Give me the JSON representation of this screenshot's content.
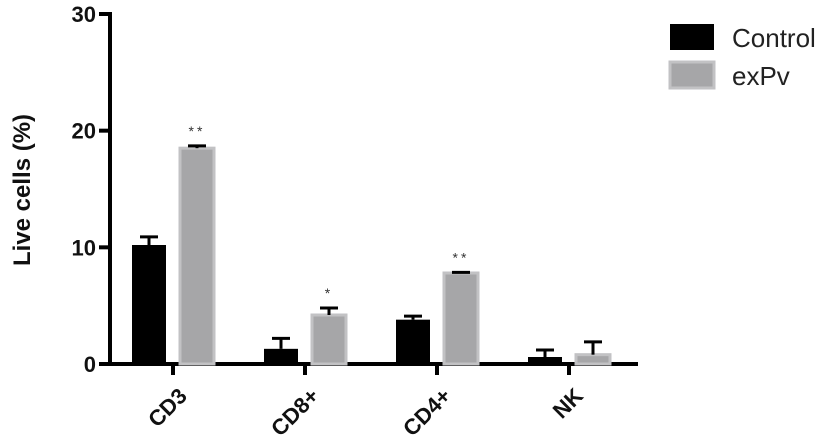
{
  "chart_data": {
    "type": "bar",
    "categories": [
      "CD3",
      "CD8+",
      "CD4+",
      "NK"
    ],
    "series": [
      {
        "name": "Control",
        "color": "#000000",
        "values": [
          10.2,
          1.3,
          3.8,
          0.6
        ],
        "errors": [
          0.7,
          0.9,
          0.3,
          0.6
        ],
        "significance": [
          "",
          "",
          "",
          ""
        ]
      },
      {
        "name": "exPv",
        "color": "#a6a6a8",
        "edge": "#c2c2c4",
        "values": [
          18.5,
          4.2,
          7.8,
          0.8
        ],
        "errors": [
          0.2,
          0.6,
          0.05,
          1.1
        ],
        "significance": [
          "**",
          "*",
          "**",
          ""
        ]
      }
    ],
    "ylabel": "Live cells (%)",
    "xlabel": "",
    "ylim": [
      0,
      30
    ],
    "yticks": [
      0,
      10,
      20,
      30
    ],
    "grid": false,
    "legend_position": "top-right"
  }
}
